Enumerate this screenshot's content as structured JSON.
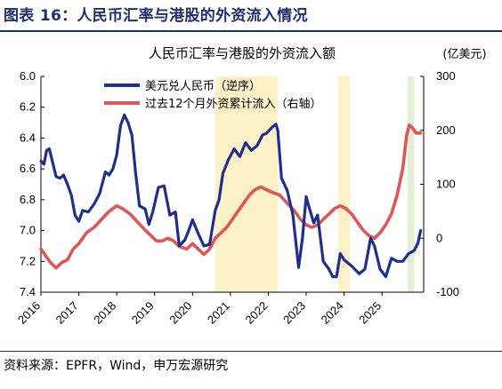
{
  "figure_title": "图表 16：人民币汇率与港股的外资流入情况",
  "source": "资料来源：EPFR，Wind，申万宏源研究",
  "chart_data": {
    "type": "line",
    "title": "人民币汇率与港股的外资流入额",
    "y2_unit": "(亿美元)",
    "x_ticks": [
      "2016",
      "2017",
      "2018",
      "2019",
      "2020",
      "2021",
      "2022",
      "2023",
      "2024",
      "2025"
    ],
    "x_range": [
      2016.0,
      2026.1
    ],
    "y_left": {
      "range": [
        6.0,
        7.4
      ],
      "inverted": true,
      "ticks": [
        "6.0",
        "6.2",
        "6.4",
        "6.6",
        "6.8",
        "7.0",
        "7.2",
        "7.4"
      ]
    },
    "y_right": {
      "range": [
        -100,
        300
      ],
      "ticks": [
        "300",
        "200",
        "100",
        "0",
        "-100"
      ]
    },
    "legend_position": "top-left",
    "grid": false,
    "shaded_periods": [
      {
        "start": 2020.6,
        "end": 2022.25,
        "color": "#fdf1c7"
      },
      {
        "start": 2023.85,
        "end": 2024.15,
        "color": "#fdf1c7"
      },
      {
        "start": 2025.68,
        "end": 2025.85,
        "color": "#e3eed2"
      }
    ],
    "series": [
      {
        "name": "美元兑人民币（逆序）",
        "axis": "left",
        "color": "#1f2f8c",
        "points": [
          [
            2016.0,
            6.55
          ],
          [
            2016.08,
            6.57
          ],
          [
            2016.15,
            6.48
          ],
          [
            2016.22,
            6.47
          ],
          [
            2016.3,
            6.55
          ],
          [
            2016.4,
            6.65
          ],
          [
            2016.5,
            6.66
          ],
          [
            2016.6,
            6.64
          ],
          [
            2016.7,
            6.7
          ],
          [
            2016.8,
            6.77
          ],
          [
            2016.9,
            6.9
          ],
          [
            2017.0,
            6.94
          ],
          [
            2017.1,
            6.87
          ],
          [
            2017.25,
            6.88
          ],
          [
            2017.4,
            6.83
          ],
          [
            2017.55,
            6.76
          ],
          [
            2017.7,
            6.62
          ],
          [
            2017.8,
            6.64
          ],
          [
            2017.9,
            6.6
          ],
          [
            2018.0,
            6.51
          ],
          [
            2018.1,
            6.32
          ],
          [
            2018.2,
            6.25
          ],
          [
            2018.3,
            6.3
          ],
          [
            2018.4,
            6.38
          ],
          [
            2018.5,
            6.63
          ],
          [
            2018.6,
            6.84
          ],
          [
            2018.75,
            6.86
          ],
          [
            2018.85,
            6.96
          ],
          [
            2018.95,
            6.88
          ],
          [
            2019.1,
            6.72
          ],
          [
            2019.25,
            6.71
          ],
          [
            2019.4,
            6.9
          ],
          [
            2019.55,
            6.88
          ],
          [
            2019.65,
            7.1
          ],
          [
            2019.8,
            7.06
          ],
          [
            2019.9,
            7.0
          ],
          [
            2020.0,
            6.93
          ],
          [
            2020.15,
            7.02
          ],
          [
            2020.3,
            7.1
          ],
          [
            2020.45,
            7.09
          ],
          [
            2020.6,
            6.87
          ],
          [
            2020.7,
            6.8
          ],
          [
            2020.8,
            6.63
          ],
          [
            2020.95,
            6.54
          ],
          [
            2021.1,
            6.47
          ],
          [
            2021.25,
            6.52
          ],
          [
            2021.4,
            6.43
          ],
          [
            2021.55,
            6.48
          ],
          [
            2021.7,
            6.45
          ],
          [
            2021.85,
            6.38
          ],
          [
            2021.95,
            6.37
          ],
          [
            2022.1,
            6.33
          ],
          [
            2022.2,
            6.31
          ],
          [
            2022.25,
            6.35
          ],
          [
            2022.35,
            6.66
          ],
          [
            2022.5,
            6.74
          ],
          [
            2022.65,
            6.9
          ],
          [
            2022.8,
            7.24
          ],
          [
            2022.9,
            7.05
          ],
          [
            2023.0,
            6.78
          ],
          [
            2023.1,
            6.87
          ],
          [
            2023.2,
            6.95
          ],
          [
            2023.3,
            6.9
          ],
          [
            2023.45,
            7.2
          ],
          [
            2023.6,
            7.25
          ],
          [
            2023.7,
            7.3
          ],
          [
            2023.8,
            7.3
          ],
          [
            2023.9,
            7.15
          ],
          [
            2024.0,
            7.19
          ],
          [
            2024.2,
            7.23
          ],
          [
            2024.4,
            7.28
          ],
          [
            2024.55,
            7.25
          ],
          [
            2024.7,
            7.05
          ],
          [
            2024.8,
            7.1
          ],
          [
            2024.95,
            7.25
          ],
          [
            2025.1,
            7.3
          ],
          [
            2025.25,
            7.18
          ],
          [
            2025.4,
            7.2
          ],
          [
            2025.55,
            7.2
          ],
          [
            2025.7,
            7.15
          ],
          [
            2025.85,
            7.13
          ],
          [
            2025.95,
            7.08
          ],
          [
            2026.02,
            7.0
          ]
        ]
      },
      {
        "name": "过去12个月外资累计流入（右轴）",
        "axis": "right",
        "color": "#e05555",
        "points": [
          [
            2016.0,
            -20
          ],
          [
            2016.1,
            -30
          ],
          [
            2016.25,
            -45
          ],
          [
            2016.4,
            -55
          ],
          [
            2016.55,
            -45
          ],
          [
            2016.7,
            -40
          ],
          [
            2016.85,
            -20
          ],
          [
            2017.0,
            -10
          ],
          [
            2017.2,
            10
          ],
          [
            2017.4,
            20
          ],
          [
            2017.6,
            35
          ],
          [
            2017.8,
            50
          ],
          [
            2018.0,
            60
          ],
          [
            2018.15,
            55
          ],
          [
            2018.35,
            45
          ],
          [
            2018.55,
            30
          ],
          [
            2018.75,
            15
          ],
          [
            2018.9,
            5
          ],
          [
            2019.05,
            -5
          ],
          [
            2019.2,
            -5
          ],
          [
            2019.35,
            0
          ],
          [
            2019.5,
            -5
          ],
          [
            2019.65,
            -15
          ],
          [
            2019.85,
            -20
          ],
          [
            2020.0,
            -10
          ],
          [
            2020.15,
            -20
          ],
          [
            2020.3,
            -30
          ],
          [
            2020.45,
            -20
          ],
          [
            2020.6,
            0
          ],
          [
            2020.75,
            10
          ],
          [
            2020.9,
            20
          ],
          [
            2021.05,
            35
          ],
          [
            2021.2,
            50
          ],
          [
            2021.35,
            65
          ],
          [
            2021.5,
            80
          ],
          [
            2021.65,
            90
          ],
          [
            2021.8,
            95
          ],
          [
            2021.95,
            90
          ],
          [
            2022.1,
            85
          ],
          [
            2022.3,
            80
          ],
          [
            2022.5,
            65
          ],
          [
            2022.7,
            50
          ],
          [
            2022.85,
            35
          ],
          [
            2023.0,
            25
          ],
          [
            2023.15,
            20
          ],
          [
            2023.3,
            25
          ],
          [
            2023.45,
            35
          ],
          [
            2023.6,
            45
          ],
          [
            2023.75,
            55
          ],
          [
            2023.9,
            60
          ],
          [
            2024.05,
            55
          ],
          [
            2024.2,
            45
          ],
          [
            2024.35,
            30
          ],
          [
            2024.5,
            15
          ],
          [
            2024.65,
            5
          ],
          [
            2024.8,
            0
          ],
          [
            2024.95,
            10
          ],
          [
            2025.1,
            25
          ],
          [
            2025.25,
            45
          ],
          [
            2025.4,
            80
          ],
          [
            2025.55,
            130
          ],
          [
            2025.65,
            190
          ],
          [
            2025.72,
            210
          ],
          [
            2025.8,
            205
          ],
          [
            2025.9,
            195
          ],
          [
            2026.02,
            195
          ]
        ]
      }
    ]
  }
}
